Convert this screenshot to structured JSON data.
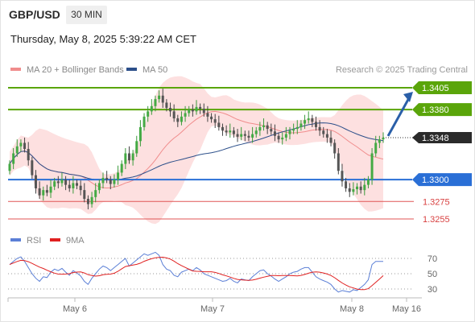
{
  "header": {
    "symbol": "GBP/USD",
    "timeframe": "30 MIN",
    "datetime": "Thursday, May 8, 2025 5:39:22 AM CET"
  },
  "chart_data": [
    {
      "type": "candlestick",
      "legend": [
        {
          "label": "MA 20 + Bollinger Bands",
          "color": "#f08c8c"
        },
        {
          "label": "MA 50",
          "color": "#2c4f8a"
        }
      ],
      "credit": "Research © 2025 Trading Central",
      "x_ticks": [
        "May 6",
        "May 7",
        "May 8",
        "May 16"
      ],
      "last_price": "1.3348",
      "levels": [
        {
          "value": "1.3405",
          "kind": "resistance",
          "color": "#5aa50a"
        },
        {
          "value": "1.3380",
          "kind": "resistance",
          "color": "#5aa50a"
        },
        {
          "value": "1.3300",
          "kind": "pivot",
          "color": "#2a6fd6"
        },
        {
          "value": "1.3275",
          "kind": "support",
          "color": "#e05555"
        },
        {
          "value": "1.3255",
          "kind": "support",
          "color": "#e05555"
        }
      ],
      "forecast": {
        "from": 1.3348,
        "to": 1.3405,
        "direction": "up",
        "color": "#2a5fa8"
      },
      "closes": [
        1.3318,
        1.333,
        1.3338,
        1.3342,
        1.3335,
        1.3322,
        1.3305,
        1.329,
        1.3282,
        1.3288,
        1.3285,
        1.3292,
        1.3298,
        1.3296,
        1.33,
        1.3294,
        1.329,
        1.3296,
        1.3293,
        1.3288,
        1.3278,
        1.3272,
        1.328,
        1.3288,
        1.3296,
        1.3302,
        1.33,
        1.3295,
        1.33,
        1.3308,
        1.3318,
        1.333,
        1.3322,
        1.333,
        1.3344,
        1.336,
        1.3372,
        1.3378,
        1.3384,
        1.3392,
        1.3396,
        1.3388,
        1.3382,
        1.3378,
        1.337,
        1.3366,
        1.3372,
        1.3376,
        1.338,
        1.3378,
        1.3383,
        1.3381,
        1.3376,
        1.3372,
        1.3369,
        1.3365,
        1.336,
        1.3356,
        1.3354,
        1.3356,
        1.3352,
        1.3349,
        1.3352,
        1.335,
        1.3348,
        1.3352,
        1.3356,
        1.336,
        1.3362,
        1.3358,
        1.3355,
        1.335,
        1.3346,
        1.3348,
        1.3352,
        1.3356,
        1.3358,
        1.336,
        1.3364,
        1.3368,
        1.337,
        1.3366,
        1.336,
        1.3356,
        1.3352,
        1.3348,
        1.3342,
        1.333,
        1.331,
        1.3298,
        1.329,
        1.3286,
        1.3289,
        1.3292,
        1.3288,
        1.3294,
        1.33,
        1.333,
        1.3342,
        1.3346,
        1.3348
      ],
      "rsi": {
        "name": "RSI",
        "color": "#5b7fd6",
        "signal_name": "9MA",
        "signal_color": "#e02020",
        "ticks": [
          "70",
          "50",
          "30"
        ],
        "ylim": [
          20,
          80
        ],
        "values": [
          62,
          66,
          70,
          72,
          66,
          58,
          50,
          44,
          40,
          46,
          45,
          52,
          56,
          54,
          57,
          52,
          48,
          54,
          51,
          47,
          40,
          36,
          44,
          50,
          56,
          60,
          58,
          54,
          58,
          62,
          66,
          70,
          60,
          64,
          68,
          72,
          76,
          74,
          76,
          78,
          74,
          62,
          56,
          54,
          48,
          46,
          52,
          54,
          56,
          54,
          58,
          55,
          50,
          48,
          46,
          44,
          42,
          40,
          41,
          44,
          40,
          38,
          43,
          42,
          41,
          46,
          50,
          54,
          55,
          50,
          47,
          43,
          40,
          43,
          46,
          50,
          52,
          53,
          56,
          58,
          58,
          52,
          46,
          43,
          41,
          39,
          36,
          30,
          26,
          28,
          27,
          26,
          29,
          28,
          32,
          36,
          42,
          62,
          66,
          66,
          66
        ]
      }
    }
  ]
}
